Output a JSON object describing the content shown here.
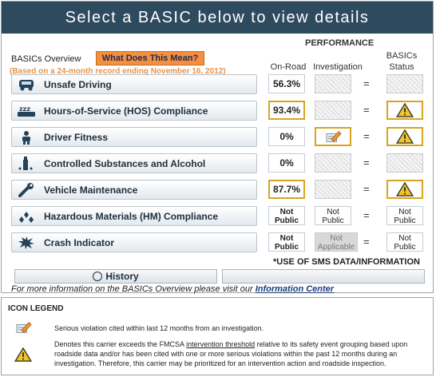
{
  "header": {
    "title": "Select a BASIC below to view details"
  },
  "performance_label": "PERFORMANCE",
  "columns": {
    "onroad": "On-Road",
    "investigation": "Investigation",
    "status_line1": "BASICs",
    "status_line2": "Status"
  },
  "overview": {
    "label": "BASICs Overview",
    "what_button": "What Does This Mean?",
    "based_on": "(Based on a 24-month record ending November 16, 2012)"
  },
  "rows": [
    {
      "label": "Unsafe Driving",
      "icon": "steering-car-icon",
      "onroad": "56.3%"
    },
    {
      "label": "Hours-of-Service (HOS) Compliance",
      "icon": "sleep-zzz-icon",
      "onroad": "93.4%"
    },
    {
      "label": "Driver Fitness",
      "icon": "driver-person-icon",
      "onroad": "0%"
    },
    {
      "label": "Controlled Substances and Alcohol",
      "icon": "bottle-pills-icon",
      "onroad": "0%"
    },
    {
      "label": "Vehicle Maintenance",
      "icon": "wrench-icon",
      "onroad": "87.7%"
    },
    {
      "label": "Hazardous Materials (HM) Compliance",
      "icon": "hazmat-icon",
      "onroad_l1": "Not",
      "onroad_l2": "Public",
      "inv_l1": "Not",
      "inv_l2": "Public",
      "status_l1": "Not",
      "status_l2": "Public"
    },
    {
      "label": "Crash Indicator",
      "icon": "crash-burst-icon",
      "onroad_l1": "Not",
      "onroad_l2": "Public",
      "inv_l1": "Not",
      "inv_l2": "Applicable",
      "status_l1": "Not",
      "status_l2": "Public"
    }
  ],
  "equals": "=",
  "sms_note": "*USE OF SMS DATA/INFORMATION",
  "history_button": "History",
  "more_info": {
    "text": "For more information on the BASICs Overview please visit our",
    "link": "Information Center"
  },
  "legend": {
    "title": "ICON LEGEND",
    "item1": "Serious violation cited within last 12 months from an investigation.",
    "item2_pre": "Denotes this carrier exceeds the FMCSA",
    "item2_link": "intervention threshold",
    "item2_post": "relative to its safety event grouping based upon roadside data and/or has been cited with one or more serious violations within the past 12 months during an investigation. Therefore, this carrier may be prioritized for an intervention action and roadside inspection."
  },
  "colors": {
    "header_bg": "#2e4a5e",
    "accent_orange": "#f58f3d",
    "alert_gold": "#d9a520"
  }
}
